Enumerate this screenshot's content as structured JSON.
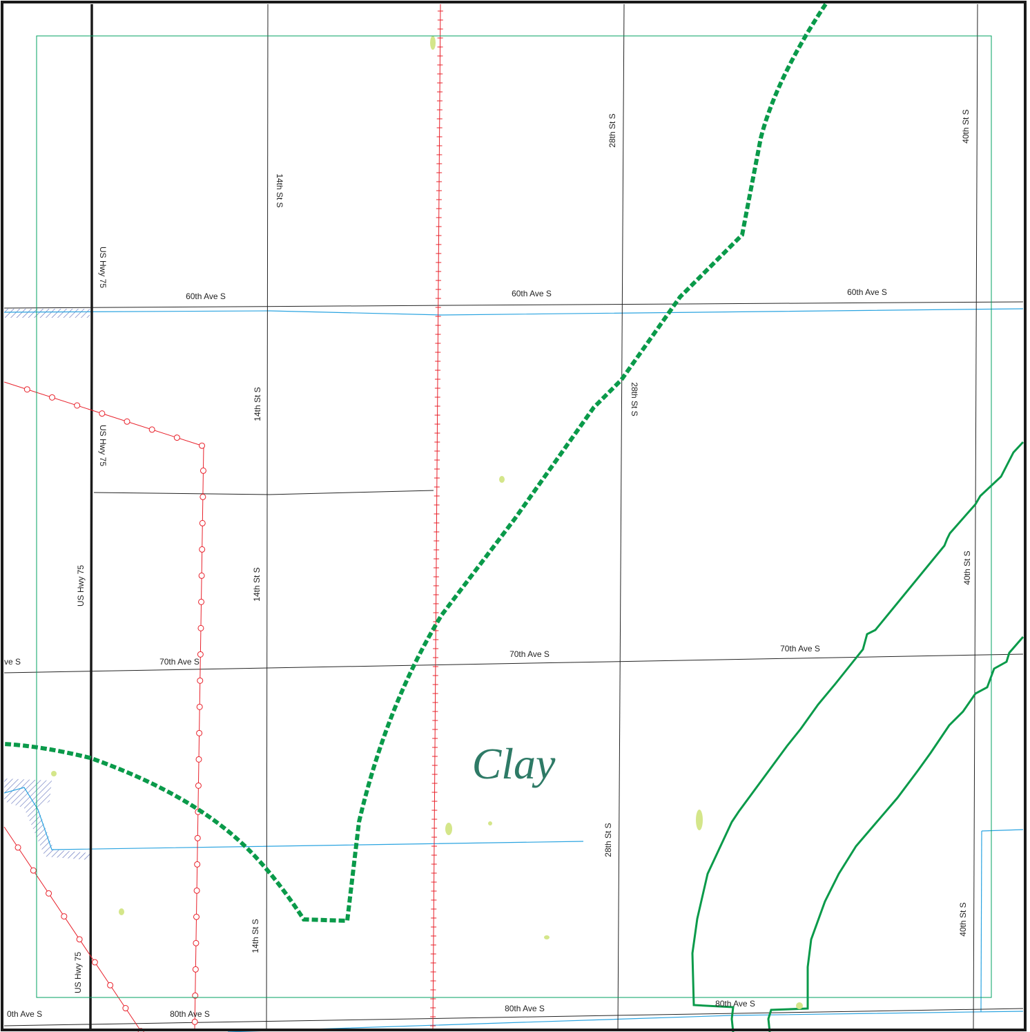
{
  "place_name": "Clay",
  "colors": {
    "frame": "#1a1a1a",
    "inner_border": "#00a060",
    "road": "#222222",
    "highway": "#1a1a1a",
    "railroad": "#e8202a",
    "transmission": "#e8202a",
    "water": "#29a3e0",
    "wetland_hatch": "#5a6ab8",
    "boundary": "#0a9a4a",
    "pond": "#d4e68a",
    "place_label": "#2e7a66"
  },
  "streets": {
    "ave60": "60th Ave S",
    "ave70": "70th Ave S",
    "ave70_partial": "ve S",
    "ave80": "80th Ave S",
    "ave80_partial": "0th Ave S",
    "st14": "14th St S",
    "st28": "28th St S",
    "st40": "40th St S",
    "hwy75": "US Hwy 75"
  }
}
